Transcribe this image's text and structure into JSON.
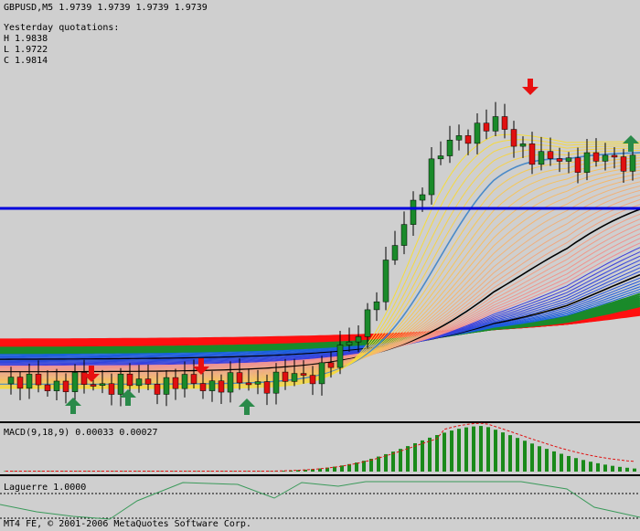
{
  "header": {
    "symbol": "GBPUSD,M5",
    "prices": [
      "1.9739",
      "1.9739",
      "1.9739",
      "1.9739"
    ]
  },
  "quotations": {
    "title": "Yesterday quotations:",
    "high": "H 1.9838",
    "low": "L 1.9722",
    "close": "C 1.9814"
  },
  "macd": {
    "label": "MACD(9,18,9) 0.00033 0.00027"
  },
  "laguerre": {
    "label": "Laguerre 1.0000"
  },
  "footer": {
    "copyright": "MT4 FE, © 2001-2006 MetaQuotes Software Corp."
  }
}
